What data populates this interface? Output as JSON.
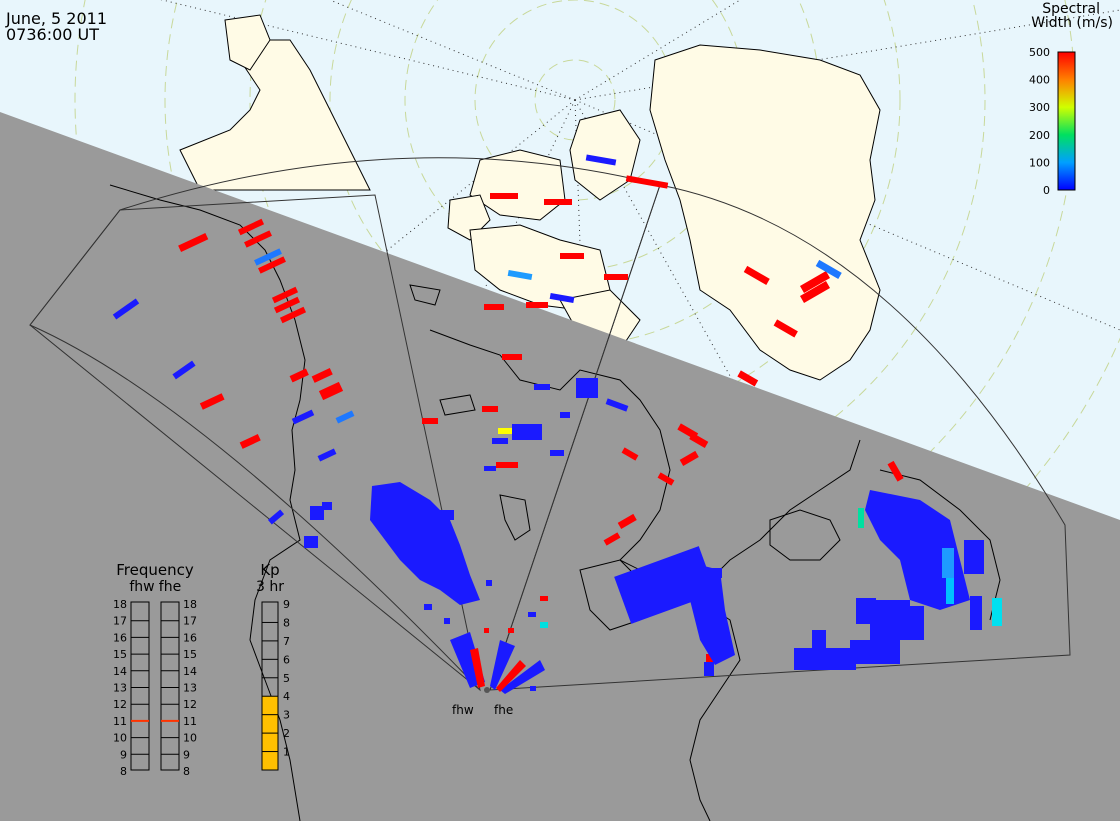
{
  "header": {
    "date": "June, 5 2011",
    "time": "0736:00 UT"
  },
  "colorbar": {
    "title_line1": "Spectral",
    "title_line2": "Width (m/s)",
    "ticks": [
      "500",
      "400",
      "300",
      "200",
      "100",
      "0"
    ]
  },
  "frequency": {
    "title": "Frequency",
    "sub_left": "fhw",
    "sub_right": "fhe",
    "ticks": [
      "18",
      "17",
      "16",
      "15",
      "14",
      "13",
      "12",
      "11",
      "10",
      "9",
      "8"
    ],
    "fhw_value_mhz": 11,
    "fhe_value_mhz": 11,
    "marker_color": "#ff3300"
  },
  "kp": {
    "title": "Kp",
    "sub": "3 hr",
    "ticks": [
      "9",
      "8",
      "7",
      "6",
      "5",
      "4",
      "3",
      "2",
      "1"
    ],
    "value": 4,
    "fill_color": "#ffc000"
  },
  "radars": {
    "west": "fhw",
    "east": "fhe"
  },
  "colors": {
    "ocean_day": "#e8f6fc",
    "night": "#9a9a9a",
    "land": "#fffbe6",
    "scatter_high": "#ff0000",
    "scatter_low": "#1a1aff",
    "scatter_mid": "#1e78ff"
  }
}
